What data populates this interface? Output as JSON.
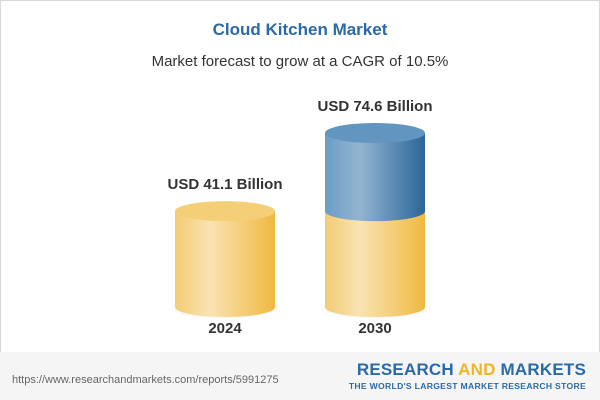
{
  "chart_data": {
    "type": "bar",
    "title": "Cloud Kitchen Market",
    "subtitle": "Market forecast to grow at a CAGR of 10.5%",
    "categories": [
      "2024",
      "2030"
    ],
    "values": [
      41.1,
      74.6
    ],
    "data_labels": [
      "USD 41.1 Billion",
      "USD 74.6 Billion"
    ],
    "unit": "USD Billion",
    "style": "3d-cylinder",
    "grid": false,
    "colors": {
      "base": "#f2c14e",
      "growth": "#2f6ea3"
    }
  },
  "footer": {
    "url": "https://www.researchandmarkets.com/reports/5991275",
    "logo_part1": "RESEARCH ",
    "logo_part2": "AND",
    "logo_part3": " MARKETS",
    "tagline": "THE WORLD'S LARGEST MARKET RESEARCH STORE"
  }
}
